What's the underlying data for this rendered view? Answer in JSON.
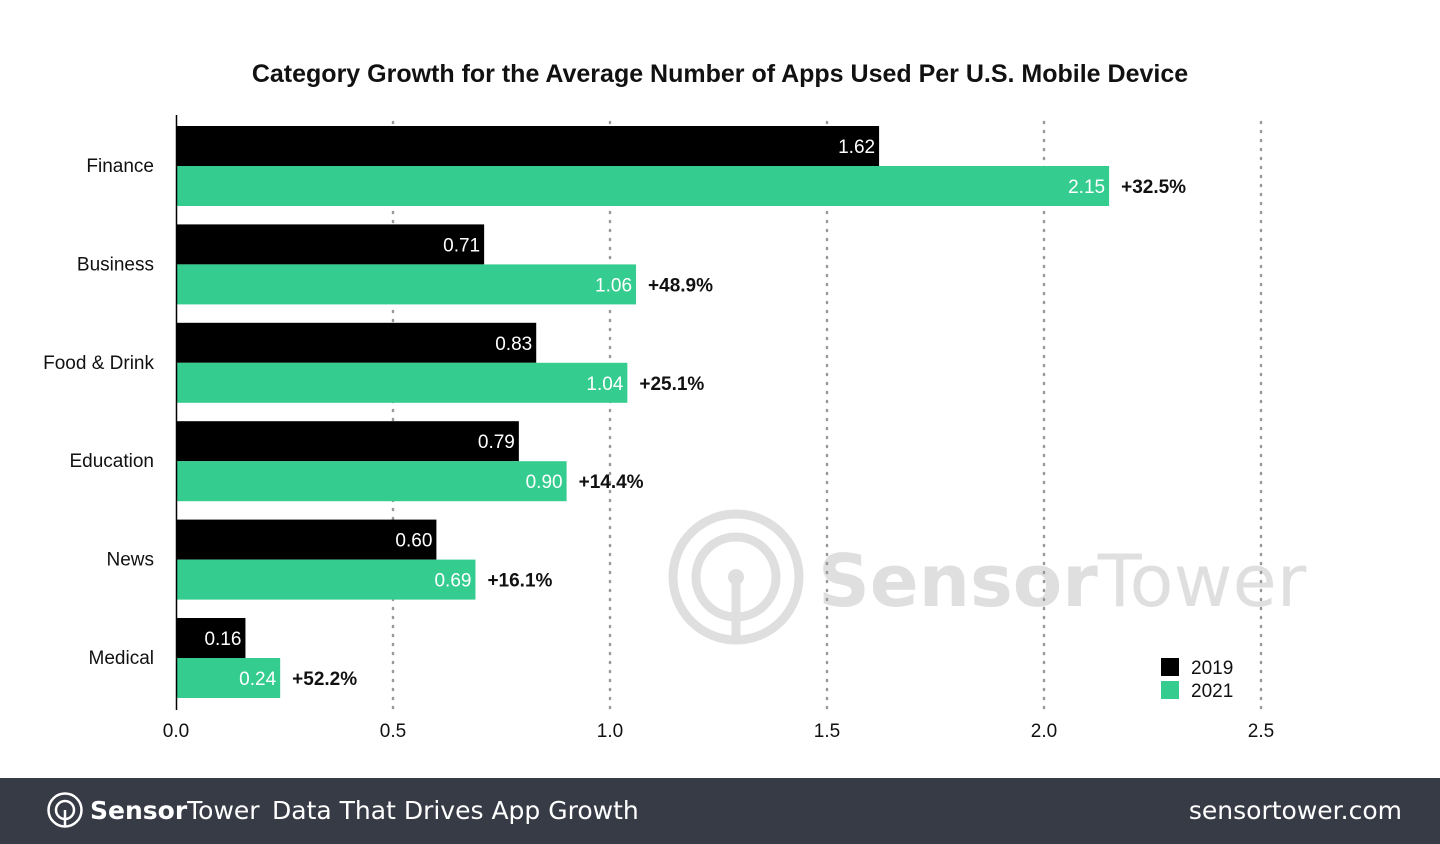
{
  "chart_data": {
    "type": "bar",
    "orientation": "horizontal",
    "title": "Category Growth for the Average Number of Apps Used Per U.S. Mobile Device",
    "categories": [
      "Finance",
      "Business",
      "Food & Drink",
      "Education",
      "News",
      "Medical"
    ],
    "series": [
      {
        "name": "2019",
        "color": "#000000",
        "values": [
          1.62,
          0.71,
          0.83,
          0.79,
          0.6,
          0.16
        ],
        "labels": [
          "1.62",
          "0.71",
          "0.83",
          "0.79",
          "0.60",
          "0.16"
        ]
      },
      {
        "name": "2021",
        "color": "#35cc8f",
        "values": [
          2.15,
          1.06,
          1.04,
          0.9,
          0.69,
          0.24
        ],
        "labels": [
          "2.15",
          "1.06",
          "1.04",
          "0.90",
          "0.69",
          "0.24"
        ]
      }
    ],
    "growth_labels": [
      "+32.5%",
      "+48.9%",
      "+25.1%",
      "+14.4%",
      "+16.1%",
      "+52.2%"
    ],
    "xlim": [
      0,
      2.5
    ],
    "xticks": [
      "0.0",
      "0.5",
      "1.0",
      "1.5",
      "2.0",
      "2.5"
    ],
    "grid": "vertical dotted",
    "legend": "bottom-right"
  },
  "watermark": "SensorTower",
  "footer": {
    "brand_bold": "Sensor",
    "brand_light": "Tower",
    "tagline": "Data That Drives App Growth",
    "url": "sensortower.com"
  }
}
